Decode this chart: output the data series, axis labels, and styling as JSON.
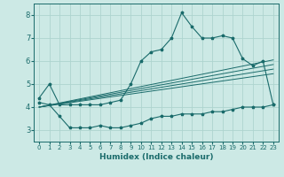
{
  "xlabel": "Humidex (Indice chaleur)",
  "xlim": [
    -0.5,
    23.5
  ],
  "ylim": [
    2.5,
    8.5
  ],
  "yticks": [
    3,
    4,
    5,
    6,
    7,
    8
  ],
  "xticks": [
    0,
    1,
    2,
    3,
    4,
    5,
    6,
    7,
    8,
    9,
    10,
    11,
    12,
    13,
    14,
    15,
    16,
    17,
    18,
    19,
    20,
    21,
    22,
    23
  ],
  "bg_color": "#cce9e5",
  "grid_color": "#aed4cf",
  "line_color": "#1a6b6b",
  "main_curve_x": [
    0,
    1,
    2,
    3,
    4,
    5,
    6,
    7,
    8,
    9,
    10,
    11,
    12,
    13,
    14,
    15,
    16,
    17,
    18,
    19,
    20,
    21,
    22,
    23
  ],
  "main_curve_y": [
    4.4,
    5.0,
    4.1,
    4.1,
    4.1,
    4.1,
    4.1,
    4.2,
    4.3,
    5.0,
    6.0,
    6.4,
    6.5,
    7.0,
    8.1,
    7.5,
    7.0,
    7.0,
    7.1,
    7.0,
    6.1,
    5.8,
    6.0,
    4.1
  ],
  "lower_curve_x": [
    0,
    1,
    2,
    3,
    4,
    5,
    6,
    7,
    8,
    9,
    10,
    11,
    12,
    13,
    14,
    15,
    16,
    17,
    18,
    19,
    20,
    21,
    22,
    23
  ],
  "lower_curve_y": [
    4.2,
    4.1,
    3.6,
    3.1,
    3.1,
    3.1,
    3.2,
    3.1,
    3.1,
    3.2,
    3.3,
    3.5,
    3.6,
    3.6,
    3.7,
    3.7,
    3.7,
    3.8,
    3.8,
    3.9,
    4.0,
    4.0,
    4.0,
    4.1
  ],
  "band_lines": [
    {
      "x0": 0,
      "y0": 4.0,
      "x1": 23,
      "y1": 6.05
    },
    {
      "x0": 0,
      "y0": 4.0,
      "x1": 23,
      "y1": 5.85
    },
    {
      "x0": 0,
      "y0": 4.0,
      "x1": 23,
      "y1": 5.65
    },
    {
      "x0": 0,
      "y0": 4.0,
      "x1": 23,
      "y1": 5.45
    }
  ]
}
